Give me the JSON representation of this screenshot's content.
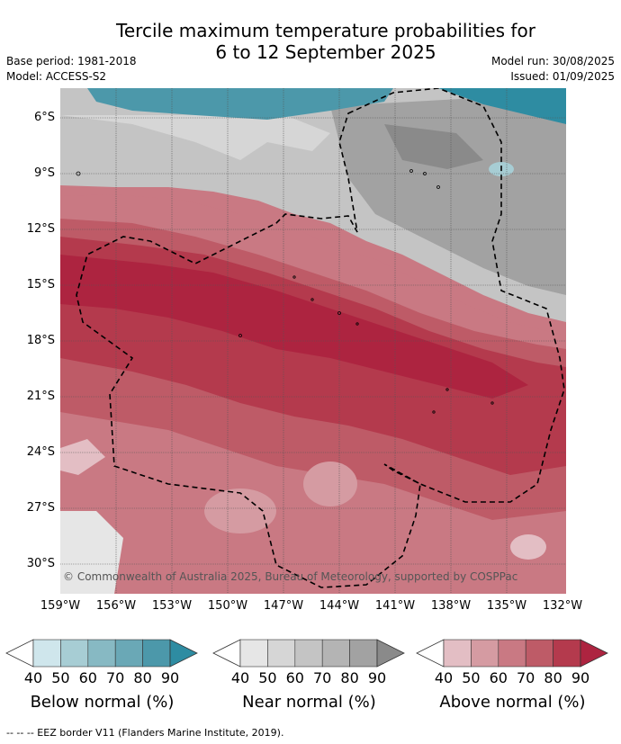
{
  "title_line1": "Tercile maximum temperature probabilities for",
  "title_line2": "6 to 12 September 2025",
  "base_period": "Base period: 1981-2018",
  "model": "Model: ACCESS-S2",
  "model_run": "Model run: 30/08/2025",
  "issued": "Issued: 01/09/2025",
  "copyright": "© Commonwealth of Australia 2025, Bureau of Meteorology, supported by COSPPac",
  "footnote": "-- -- -- EEZ border V11 (Flanders Marine Institute, 2019).",
  "lat_labels": [
    "6°S",
    "9°S",
    "12°S",
    "15°S",
    "18°S",
    "21°S",
    "24°S",
    "27°S",
    "30°S"
  ],
  "lon_labels": [
    "159°W",
    "156°W",
    "153°W",
    "150°W",
    "147°W",
    "144°W",
    "141°W",
    "138°W",
    "135°W",
    "132°W"
  ],
  "legends": [
    {
      "name": "Below normal (%)",
      "ticks": [
        "40",
        "50",
        "60",
        "70",
        "80",
        "90"
      ],
      "colors": [
        "#cfe6ec",
        "#a7cdd4",
        "#87b9c3",
        "#6aa8b6",
        "#4c98aa",
        "#2e8ca2"
      ]
    },
    {
      "name": "Near normal (%)",
      "ticks": [
        "40",
        "50",
        "60",
        "70",
        "80",
        "90"
      ],
      "colors": [
        "#e6e6e6",
        "#d6d6d6",
        "#c4c4c4",
        "#b4b4b4",
        "#a2a2a2",
        "#8a8a8a"
      ]
    },
    {
      "name": "Above normal (%)",
      "ticks": [
        "40",
        "50",
        "60",
        "70",
        "80",
        "90"
      ],
      "colors": [
        "#e3bec4",
        "#d59ba2",
        "#c97983",
        "#be5b67",
        "#b43a4d",
        "#ad2440"
      ]
    }
  ]
}
